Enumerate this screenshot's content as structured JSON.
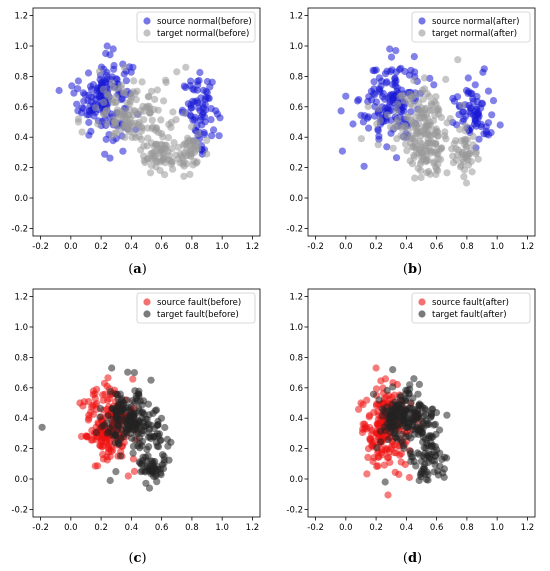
{
  "chart_data": [
    {
      "type": "scatter",
      "panel_label": "a",
      "xlim": [
        -0.25,
        1.25
      ],
      "ylim": [
        -0.25,
        1.25
      ],
      "xticks": [
        "-0.2",
        "0.0",
        "0.2",
        "0.4",
        "0.6",
        "0.8",
        "1.0",
        "1.2"
      ],
      "yticks": [
        "-0.2",
        "0.0",
        "0.2",
        "0.4",
        "0.6",
        "0.8",
        "1.0",
        "1.2"
      ],
      "legend_position": "top-right",
      "series": [
        {
          "name": "source normal(before)",
          "color": "#1a1ad6",
          "clusters": [
            {
              "cx": 0.22,
              "cy": 0.66,
              "sx": 0.085,
              "sy": 0.13,
              "n": 150
            },
            {
              "cx": 0.86,
              "cy": 0.57,
              "sx": 0.06,
              "sy": 0.11,
              "n": 70
            }
          ],
          "points": [
            [
              0.05,
              0.77
            ],
            [
              0.24,
              1.0
            ],
            [
              0.28,
              0.98
            ],
            [
              0.41,
              0.86
            ],
            [
              0.98,
              0.41
            ],
            [
              0.93,
              0.41
            ],
            [
              0.02,
              0.69
            ],
            [
              0.87,
              0.31
            ]
          ]
        },
        {
          "name": "target normal(before)",
          "color": "#999999",
          "clusters": [
            {
              "cx": 0.42,
              "cy": 0.56,
              "sx": 0.12,
              "sy": 0.1,
              "n": 130
            },
            {
              "cx": 0.58,
              "cy": 0.27,
              "sx": 0.06,
              "sy": 0.06,
              "n": 60
            },
            {
              "cx": 0.79,
              "cy": 0.3,
              "sx": 0.04,
              "sy": 0.07,
              "n": 45
            }
          ],
          "points": [
            [
              0.05,
              0.52
            ],
            [
              0.05,
              0.5
            ],
            [
              0.7,
              0.83
            ],
            [
              0.76,
              0.86
            ],
            [
              0.63,
              0.76
            ],
            [
              0.4,
              0.66
            ]
          ]
        }
      ]
    },
    {
      "type": "scatter",
      "panel_label": "b",
      "xlim": [
        -0.25,
        1.25
      ],
      "ylim": [
        -0.25,
        1.25
      ],
      "xticks": [
        "-0.2",
        "0.0",
        "0.2",
        "0.4",
        "0.6",
        "0.8",
        "1.0",
        "1.2"
      ],
      "yticks": [
        "-0.2",
        "0.0",
        "0.2",
        "0.4",
        "0.6",
        "0.8",
        "1.0",
        "1.2"
      ],
      "legend_position": "top-right",
      "series": [
        {
          "name": "source normal(after)",
          "color": "#1a1ad6",
          "clusters": [
            {
              "cx": 0.3,
              "cy": 0.63,
              "sx": 0.1,
              "sy": 0.14,
              "n": 150
            },
            {
              "cx": 0.84,
              "cy": 0.58,
              "sx": 0.06,
              "sy": 0.1,
              "n": 70
            }
          ],
          "points": [
            [
              0.0,
              0.67
            ],
            [
              0.29,
              0.98
            ],
            [
              0.33,
              0.97
            ],
            [
              1.02,
              0.48
            ],
            [
              0.96,
              0.43
            ],
            [
              0.86,
              0.33
            ]
          ]
        },
        {
          "name": "target normal(after)",
          "color": "#999999",
          "clusters": [
            {
              "cx": 0.47,
              "cy": 0.5,
              "sx": 0.12,
              "sy": 0.11,
              "n": 130
            },
            {
              "cx": 0.55,
              "cy": 0.28,
              "sx": 0.06,
              "sy": 0.06,
              "n": 60
            },
            {
              "cx": 0.78,
              "cy": 0.32,
              "sx": 0.04,
              "sy": 0.07,
              "n": 45
            }
          ],
          "points": [
            [
              0.74,
              0.91
            ],
            [
              0.66,
              0.78
            ],
            [
              0.52,
              0.79
            ],
            [
              0.6,
              0.19
            ],
            [
              0.78,
              0.14
            ]
          ]
        }
      ]
    },
    {
      "type": "scatter",
      "panel_label": "c",
      "xlim": [
        -0.25,
        1.25
      ],
      "ylim": [
        -0.25,
        1.25
      ],
      "xticks": [
        "-0.2",
        "0.0",
        "0.2",
        "0.4",
        "0.6",
        "0.8",
        "1.0",
        "1.2"
      ],
      "yticks": [
        "-0.2",
        "0.0",
        "0.2",
        "0.4",
        "0.6",
        "0.8",
        "1.0",
        "1.2"
      ],
      "legend_position": "top-right",
      "series": [
        {
          "name": "source fault(before)",
          "color": "#ee1111",
          "clusters": [
            {
              "cx": 0.26,
              "cy": 0.35,
              "sx": 0.08,
              "sy": 0.12,
              "n": 200
            }
          ],
          "points": [
            [
              0.06,
              0.5
            ],
            [
              0.08,
              0.48
            ],
            [
              0.38,
              0.02
            ],
            [
              0.42,
              0.05
            ],
            [
              0.24,
              0.61
            ],
            [
              0.17,
              0.59
            ]
          ]
        },
        {
          "name": "target fault(before)",
          "color": "#222222",
          "clusters": [
            {
              "cx": 0.38,
              "cy": 0.38,
              "sx": 0.08,
              "sy": 0.1,
              "n": 170
            },
            {
              "cx": 0.53,
              "cy": 0.07,
              "sx": 0.04,
              "sy": 0.04,
              "n": 40
            },
            {
              "cx": 0.56,
              "cy": 0.25,
              "sx": 0.05,
              "sy": 0.1,
              "n": 40
            }
          ],
          "points": [
            [
              -0.19,
              0.34
            ],
            [
              0.27,
              0.73
            ],
            [
              0.53,
              0.65
            ],
            [
              0.52,
              -0.06
            ],
            [
              0.26,
              -0.01
            ],
            [
              0.42,
              0.7
            ]
          ]
        }
      ]
    },
    {
      "type": "scatter",
      "panel_label": "d",
      "xlim": [
        -0.25,
        1.25
      ],
      "ylim": [
        -0.25,
        1.25
      ],
      "xticks": [
        "-0.2",
        "0.0",
        "0.2",
        "0.4",
        "0.6",
        "0.8",
        "1.0",
        "1.2"
      ],
      "yticks": [
        "-0.2",
        "0.0",
        "0.2",
        "0.4",
        "0.6",
        "0.8",
        "1.0",
        "1.2"
      ],
      "legend_position": "top-right",
      "series": [
        {
          "name": "source fault(after)",
          "color": "#ee1111",
          "clusters": [
            {
              "cx": 0.27,
              "cy": 0.33,
              "sx": 0.08,
              "sy": 0.13,
              "n": 200
            }
          ],
          "points": [
            [
              0.2,
              0.73
            ],
            [
              0.1,
              0.5
            ],
            [
              0.42,
              0.01
            ],
            [
              0.35,
              0.03
            ],
            [
              0.15,
              0.2
            ]
          ]
        },
        {
          "name": "target fault(after)",
          "color": "#222222",
          "clusters": [
            {
              "cx": 0.38,
              "cy": 0.4,
              "sx": 0.08,
              "sy": 0.1,
              "n": 170
            },
            {
              "cx": 0.55,
              "cy": 0.1,
              "sx": 0.05,
              "sy": 0.06,
              "n": 45
            },
            {
              "cx": 0.55,
              "cy": 0.3,
              "sx": 0.05,
              "sy": 0.1,
              "n": 40
            }
          ],
          "points": [
            [
              0.26,
              -0.02
            ],
            [
              0.31,
              0.72
            ],
            [
              0.45,
              0.66
            ],
            [
              0.62,
              0.17
            ],
            [
              0.64,
              0.04
            ]
          ]
        }
      ]
    }
  ]
}
